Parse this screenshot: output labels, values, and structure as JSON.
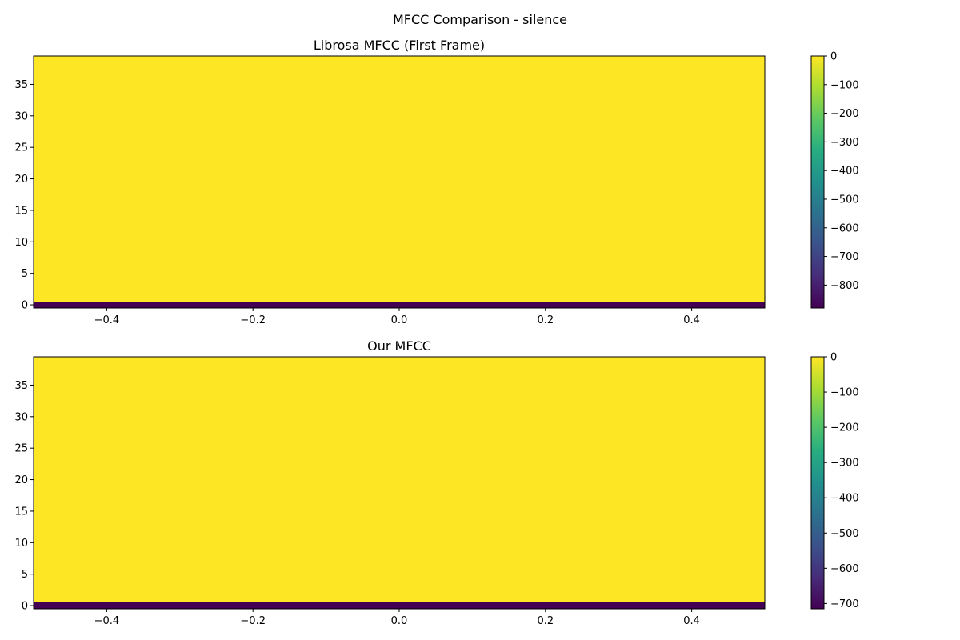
{
  "figure": {
    "suptitle": "MFCC Comparison - silence"
  },
  "chart_data": [
    {
      "type": "heatmap",
      "title": "Librosa MFCC (First Frame)",
      "xlabel": "",
      "ylabel": "",
      "xlim": [
        -0.5,
        0.5
      ],
      "ylim": [
        -0.5,
        39.5
      ],
      "x_ticks": [
        -0.4,
        -0.2,
        0.0,
        0.2,
        0.4
      ],
      "x_tick_labels": [
        "−0.4",
        "−0.2",
        "0.0",
        "0.2",
        "0.4"
      ],
      "y_ticks": [
        0,
        5,
        10,
        15,
        20,
        25,
        30,
        35
      ],
      "y_tick_labels": [
        "0",
        "5",
        "10",
        "15",
        "20",
        "25",
        "30",
        "35"
      ],
      "rows": 40,
      "columns": 1,
      "values": [
        -880,
        0,
        0,
        0,
        0,
        0,
        0,
        0,
        0,
        0,
        0,
        0,
        0,
        0,
        0,
        0,
        0,
        0,
        0,
        0,
        0,
        0,
        0,
        0,
        0,
        0,
        0,
        0,
        0,
        0,
        0,
        0,
        0,
        0,
        0,
        0,
        0,
        0,
        0,
        0
      ],
      "colorbar": {
        "colormap": "viridis",
        "vmin": -880,
        "vmax": 0,
        "ticks": [
          0,
          -100,
          -200,
          -300,
          -400,
          -500,
          -600,
          -700,
          -800
        ],
        "tick_labels": [
          "0",
          "−100",
          "−200",
          "−300",
          "−400",
          "−500",
          "−600",
          "−700",
          "−800"
        ]
      }
    },
    {
      "type": "heatmap",
      "title": "Our MFCC",
      "xlabel": "",
      "ylabel": "",
      "xlim": [
        -0.5,
        0.5
      ],
      "ylim": [
        -0.5,
        39.5
      ],
      "x_ticks": [
        -0.4,
        -0.2,
        0.0,
        0.2,
        0.4
      ],
      "x_tick_labels": [
        "−0.4",
        "−0.2",
        "0.0",
        "0.2",
        "0.4"
      ],
      "y_ticks": [
        0,
        5,
        10,
        15,
        20,
        25,
        30,
        35
      ],
      "y_tick_labels": [
        "0",
        "5",
        "10",
        "15",
        "20",
        "25",
        "30",
        "35"
      ],
      "rows": 40,
      "columns": 1,
      "values": [
        -715,
        0,
        0,
        0,
        0,
        0,
        0,
        0,
        0,
        0,
        0,
        0,
        0,
        0,
        0,
        0,
        0,
        0,
        0,
        0,
        0,
        0,
        0,
        0,
        0,
        0,
        0,
        0,
        0,
        0,
        0,
        0,
        0,
        0,
        0,
        0,
        0,
        0,
        0,
        0
      ],
      "colorbar": {
        "colormap": "viridis",
        "vmin": -715,
        "vmax": 0,
        "ticks": [
          0,
          -100,
          -200,
          -300,
          -400,
          -500,
          -600,
          -700
        ],
        "tick_labels": [
          "0",
          "−100",
          "−200",
          "−300",
          "−400",
          "−500",
          "−600",
          "−700"
        ]
      }
    }
  ]
}
